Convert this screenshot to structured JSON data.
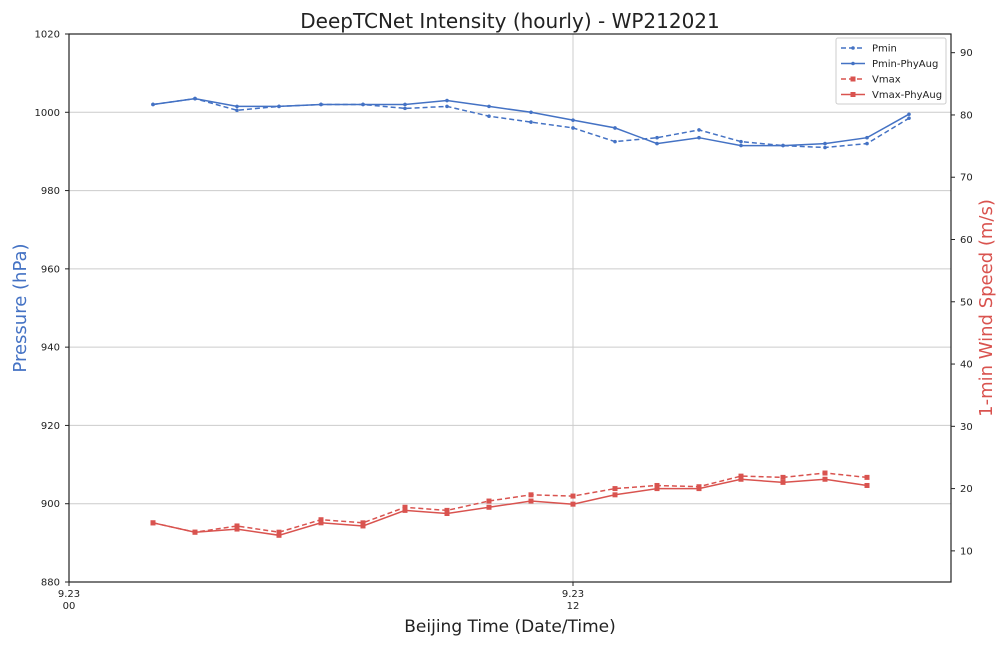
{
  "chart_data": {
    "type": "line",
    "title": "DeepTCNet Intensity (hourly) - WP212021",
    "xlabel": "Beijing Time (Date/Time)",
    "ylabel_left": "Pressure (hPa)",
    "ylabel_right": "1-min Wind Speed (m/s)",
    "x_ticks": [
      {
        "hour": 0,
        "line1": "9.23",
        "line2": "00"
      },
      {
        "hour": 12,
        "line1": "9.23",
        "line2": "12"
      }
    ],
    "xlim": [
      0,
      21
    ],
    "ylim_left": [
      880,
      1020
    ],
    "yticks_left": [
      880,
      900,
      920,
      940,
      960,
      980,
      1000,
      1020
    ],
    "ylim_right": [
      5,
      93
    ],
    "yticks_right": [
      10,
      20,
      30,
      40,
      50,
      60,
      70,
      80,
      90
    ],
    "grid": true,
    "legend_position": "top-right",
    "x": [
      2,
      3,
      4,
      5,
      6,
      7,
      8,
      9,
      10,
      11,
      12,
      13,
      14,
      15,
      16,
      17,
      18,
      19,
      20
    ],
    "series": [
      {
        "name": "Pmin",
        "axis": "left",
        "color": "#4472c4",
        "dash": true,
        "marker": "dot",
        "values": [
          1002.0,
          1003.5,
          1000.5,
          1001.5,
          1002.0,
          1002.0,
          1001.0,
          1001.5,
          999.0,
          997.5,
          996.0,
          992.5,
          993.5,
          995.5,
          992.5,
          991.5,
          991.0,
          992.0,
          998.5
        ]
      },
      {
        "name": "Pmin-PhyAug",
        "axis": "left",
        "color": "#4472c4",
        "dash": false,
        "marker": "dot",
        "values": [
          1002.0,
          1003.5,
          1001.5,
          1001.5,
          1002.0,
          1002.0,
          1002.0,
          1003.0,
          1001.5,
          1000.0,
          998.0,
          996.0,
          992.0,
          993.5,
          991.5,
          991.5,
          992.0,
          993.5,
          999.5
        ]
      },
      {
        "name": "Vmax",
        "axis": "right",
        "color": "#d9534f",
        "dash": true,
        "marker": "square",
        "values": [
          14.5,
          13.0,
          14.0,
          13.0,
          15.0,
          14.5,
          17.0,
          16.5,
          18.0,
          19.0,
          18.8,
          20.0,
          20.5,
          20.3,
          22.0,
          21.8,
          22.5,
          21.8,
          null
        ]
      },
      {
        "name": "Vmax-PhyAug",
        "axis": "right",
        "color": "#d9534f",
        "dash": false,
        "marker": "square",
        "values": [
          14.5,
          13.0,
          13.5,
          12.5,
          14.5,
          14.0,
          16.5,
          16.0,
          17.0,
          18.0,
          17.5,
          19.0,
          20.0,
          20.0,
          21.5,
          21.0,
          21.5,
          20.5,
          null
        ]
      }
    ]
  }
}
